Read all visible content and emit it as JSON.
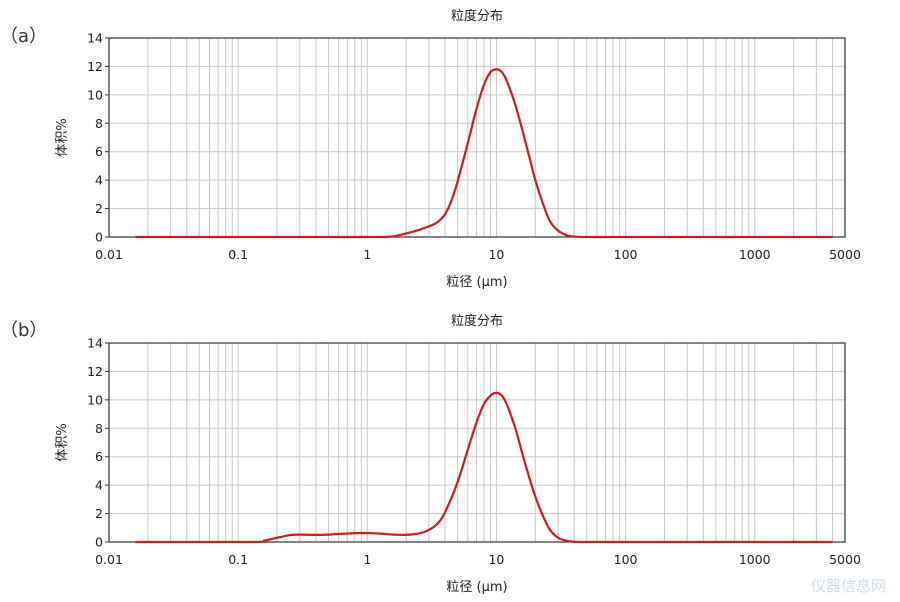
{
  "panels": [
    {
      "label": "（a）"
    },
    {
      "label": "（b）"
    }
  ],
  "watermark": "仪器信息网",
  "chart_data": [
    {
      "type": "line",
      "title": "粒度分布",
      "xlabel": "粒径 (μm)",
      "ylabel": "体积%",
      "xscale": "log",
      "xlim": [
        0.01,
        5000
      ],
      "xticks": [
        0.01,
        0.1,
        1,
        10,
        100,
        1000,
        5000
      ],
      "xtick_labels": [
        "0.01",
        "0.1",
        "1",
        "10",
        "100",
        "1000",
        "5000"
      ],
      "ylim": [
        0,
        14
      ],
      "yticks": [
        0,
        2,
        4,
        6,
        8,
        10,
        12,
        14
      ],
      "grid": true,
      "color": "#d11a1a",
      "series": [
        {
          "x": [
            0.016,
            0.1,
            1,
            1.4,
            1.6,
            2.0,
            2.5,
            3.0,
            3.5,
            4.0,
            4.5,
            5.0,
            6.0,
            7.0,
            8.0,
            9.0,
            10.0,
            11.0,
            12.0,
            14.0,
            16.0,
            18.0,
            20.0,
            23.0,
            26.0,
            30.0,
            35.0,
            40.0,
            50.0,
            100,
            1000,
            4000
          ],
          "y": [
            0,
            0,
            0,
            0,
            0.05,
            0.25,
            0.5,
            0.75,
            1.05,
            1.6,
            2.6,
            3.9,
            6.6,
            9.0,
            10.7,
            11.6,
            11.8,
            11.6,
            11.0,
            9.3,
            7.4,
            5.6,
            4.0,
            2.3,
            1.1,
            0.45,
            0.12,
            0.03,
            0,
            0,
            0,
            0
          ]
        }
      ]
    },
    {
      "type": "line",
      "title": "粒度分布",
      "xlabel": "粒径 (μm)",
      "ylabel": "体积%",
      "xscale": "log",
      "xlim": [
        0.01,
        5000
      ],
      "xticks": [
        0.01,
        0.1,
        1,
        10,
        100,
        1000,
        5000
      ],
      "xtick_labels": [
        "0.01",
        "0.1",
        "1",
        "10",
        "100",
        "1000",
        "5000"
      ],
      "ylim": [
        0,
        14
      ],
      "yticks": [
        0,
        2,
        4,
        6,
        8,
        10,
        12,
        14
      ],
      "grid": true,
      "color": "#d11a1a",
      "series": [
        {
          "x": [
            0.016,
            0.13,
            0.16,
            0.2,
            0.25,
            0.3,
            0.4,
            0.5,
            0.7,
            1.0,
            1.3,
            1.6,
            2.0,
            2.5,
            3.0,
            3.5,
            4.0,
            5.0,
            6.0,
            7.0,
            8.0,
            9.0,
            10.0,
            11.0,
            12.0,
            14.0,
            16.0,
            18.0,
            20.0,
            23.0,
            26.0,
            30.0,
            35.0,
            40.0,
            50.0,
            100,
            1000,
            4000
          ],
          "y": [
            0,
            0,
            0.1,
            0.3,
            0.48,
            0.52,
            0.5,
            0.52,
            0.6,
            0.63,
            0.58,
            0.52,
            0.5,
            0.6,
            0.85,
            1.3,
            2.1,
            4.2,
            6.5,
            8.4,
            9.7,
            10.3,
            10.5,
            10.3,
            9.7,
            8.0,
            6.1,
            4.5,
            3.2,
            1.8,
            0.85,
            0.3,
            0.08,
            0.02,
            0,
            0,
            0,
            0
          ]
        }
      ]
    }
  ]
}
